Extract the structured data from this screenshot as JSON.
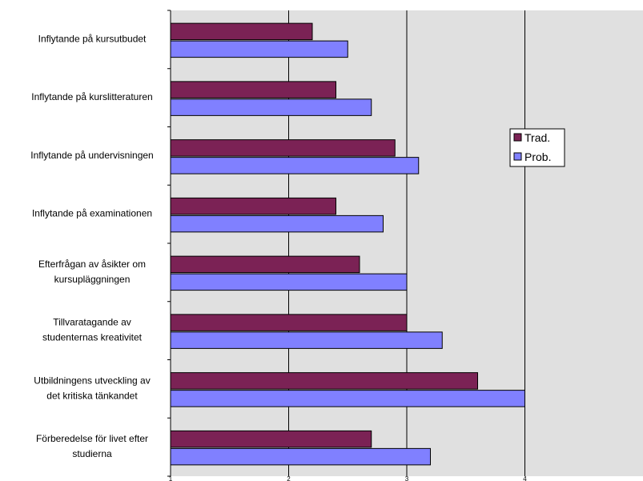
{
  "chart_data": {
    "type": "bar",
    "orientation": "horizontal",
    "categories": [
      [
        "Inflytande på kursutbudet"
      ],
      [
        "Inflytande på kurslitteraturen"
      ],
      [
        "Inflytande på undervisningen"
      ],
      [
        "Inflytande på examinationen"
      ],
      [
        "Efterfrågan av åsikter om",
        "kursupläggningen"
      ],
      [
        "Tillvaratagande av",
        "studenternas kreativitet"
      ],
      [
        "Utbildningens utveckling av",
        "det kritiska tänkandet"
      ],
      [
        "Förberedelse för livet efter",
        "studierna"
      ]
    ],
    "series": [
      {
        "name": "Trad.",
        "color": "#7b2255",
        "values": [
          2.2,
          2.4,
          2.9,
          2.4,
          2.6,
          3.0,
          3.6,
          2.7
        ]
      },
      {
        "name": "Prob.",
        "color": "#8080ff",
        "values": [
          2.5,
          2.7,
          3.1,
          2.8,
          3.0,
          3.3,
          4.0,
          3.2
        ]
      }
    ],
    "xlim": [
      1,
      5
    ],
    "xticks": [
      "1",
      "2",
      "3",
      "4"
    ],
    "grid": "vertical",
    "plot_background": "#e0e0e0",
    "legend_position": "right"
  }
}
